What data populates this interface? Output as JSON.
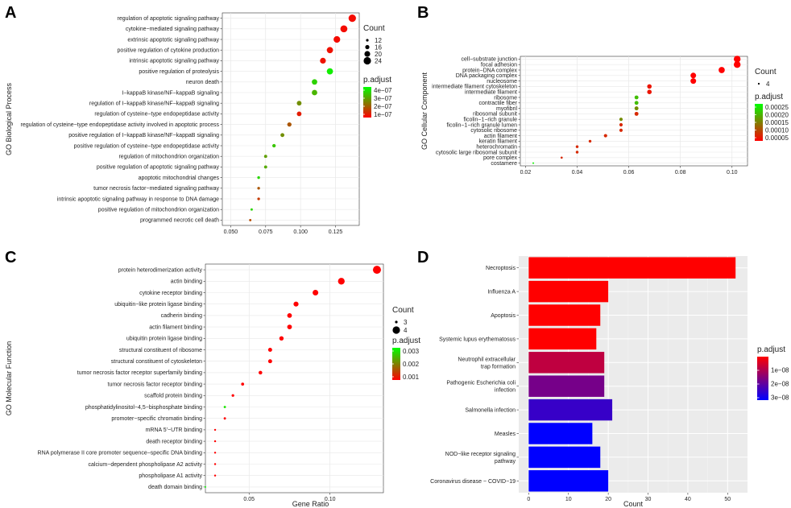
{
  "chart_data": [
    {
      "panel": "A",
      "type": "scatter",
      "ylabel": "GO Biological Process",
      "xlabel": "",
      "xlim": [
        0.044,
        0.142
      ],
      "xticks": [
        "0.050",
        "0.075",
        "0.100",
        "0.125"
      ],
      "xtick_values": [
        0.05,
        0.075,
        0.1,
        0.125
      ],
      "grid": true,
      "legend_position": "right",
      "count_title": "Count",
      "count_legend": [
        "12",
        "16",
        "20",
        "24"
      ],
      "padj_title": "p.adjust",
      "padj_ticks": [
        "4e−07",
        "3e−07",
        "2e−07",
        "1e−07"
      ],
      "padj_range": [
        0,
        4.5e-07
      ],
      "color_low": "#ff0000",
      "color_high": "#00ff00",
      "points": [
        {
          "term": "regulation of apoptotic signaling pathway",
          "ratio": 0.137,
          "count": 26,
          "padj": 2e-08
        },
        {
          "term": "cytokine−mediated signaling pathway",
          "ratio": 0.131,
          "count": 25,
          "padj": 2e-08
        },
        {
          "term": "extrinsic apoptotic signaling pathway",
          "ratio": 0.126,
          "count": 24,
          "padj": 2e-08
        },
        {
          "term": "positive regulation of cytokine production",
          "ratio": 0.121,
          "count": 23,
          "padj": 3e-08
        },
        {
          "term": "intrinsic apoptotic signaling pathway",
          "ratio": 0.116,
          "count": 22,
          "padj": 3e-08
        },
        {
          "term": "positive regulation of proteolysis",
          "ratio": 0.121,
          "count": 23,
          "padj": 4.2e-07
        },
        {
          "term": "neuron death",
          "ratio": 0.11,
          "count": 21,
          "padj": 3.7e-07
        },
        {
          "term": "I−kappaB kinase/NF−kappaB signaling",
          "ratio": 0.11,
          "count": 21,
          "padj": 3.2e-07
        },
        {
          "term": "regulation of I−kappaB kinase/NF−kappaB signaling",
          "ratio": 0.099,
          "count": 19,
          "padj": 2.5e-07
        },
        {
          "term": "regulation of cysteine−type endopeptidase activity",
          "ratio": 0.099,
          "count": 19,
          "padj": 5e-08
        },
        {
          "term": "regulation of cysteine−type endopeptidase activity involved in apoptotic process",
          "ratio": 0.092,
          "count": 18,
          "padj": 1.5e-07
        },
        {
          "term": "positive regulation of I−kappaB kinase/NF−kappaB signaling",
          "ratio": 0.087,
          "count": 17,
          "padj": 2.5e-07
        },
        {
          "term": "positive regulation of cysteine−type endopeptidase activity",
          "ratio": 0.081,
          "count": 16,
          "padj": 3.5e-07
        },
        {
          "term": "regulation of mitochondrion organization",
          "ratio": 0.075,
          "count": 15,
          "padj": 2.8e-07
        },
        {
          "term": "positive regulation of apoptotic signaling pathway",
          "ratio": 0.075,
          "count": 15,
          "padj": 3e-07
        },
        {
          "term": "apoptotic mitochondrial changes",
          "ratio": 0.07,
          "count": 14,
          "padj": 3.8e-07
        },
        {
          "term": "tumor necrosis factor−mediated signaling pathway",
          "ratio": 0.07,
          "count": 14,
          "padj": 1.5e-07
        },
        {
          "term": "intrinsic apoptotic signaling pathway in response to DNA damage",
          "ratio": 0.07,
          "count": 14,
          "padj": 1e-07
        },
        {
          "term": "positive regulation of mitochondrion organization",
          "ratio": 0.065,
          "count": 13,
          "padj": 3.8e-07
        },
        {
          "term": "programmed necrotic cell death",
          "ratio": 0.064,
          "count": 13,
          "padj": 1.3e-07
        }
      ]
    },
    {
      "panel": "B",
      "type": "scatter",
      "ylabel": "GO Cellular Component",
      "xlabel": "",
      "xlim": [
        0.018,
        0.106
      ],
      "xticks": [
        "0.02",
        "0.04",
        "0.06",
        "0.08",
        "0.10"
      ],
      "xtick_values": [
        0.02,
        0.04,
        0.06,
        0.08,
        0.1
      ],
      "grid": true,
      "legend_position": "right",
      "count_title": "Count",
      "count_legend": [
        "4"
      ],
      "padj_title": "p.adjust",
      "padj_ticks": [
        "0.00025",
        "0.00020",
        "0.00015",
        "0.00010",
        "0.00005"
      ],
      "padj_range": [
        1e-05,
        0.000265
      ],
      "color_low": "#ff0000",
      "color_high": "#00ff00",
      "points": [
        {
          "term": "cell−substrate junction",
          "ratio": 0.102,
          "count": 12,
          "padj": 1e-05
        },
        {
          "term": "focal adhesion",
          "ratio": 0.102,
          "count": 12,
          "padj": 1e-05
        },
        {
          "term": "protein−DNA complex",
          "ratio": 0.096,
          "count": 11,
          "padj": 1e-05
        },
        {
          "term": "DNA packaging complex",
          "ratio": 0.085,
          "count": 10,
          "padj": 1e-05
        },
        {
          "term": "nucleosome",
          "ratio": 0.085,
          "count": 10,
          "padj": 1e-05
        },
        {
          "term": "intermediate filament cytoskeleton",
          "ratio": 0.068,
          "count": 8,
          "padj": 3e-05
        },
        {
          "term": "intermediate filament",
          "ratio": 0.068,
          "count": 8,
          "padj": 3e-05
        },
        {
          "term": "ribosome",
          "ratio": 0.063,
          "count": 7,
          "padj": 0.0002
        },
        {
          "term": "contractile fiber",
          "ratio": 0.063,
          "count": 7,
          "padj": 0.0002
        },
        {
          "term": "myofibril",
          "ratio": 0.063,
          "count": 7,
          "padj": 0.00015
        },
        {
          "term": "ribosomal subunit",
          "ratio": 0.063,
          "count": 7,
          "padj": 5e-05
        },
        {
          "term": "ficolin−1−rich granule",
          "ratio": 0.057,
          "count": 6,
          "padj": 0.00015
        },
        {
          "term": "ficolin−1−rich granule lumen",
          "ratio": 0.057,
          "count": 6,
          "padj": 5e-05
        },
        {
          "term": "cytosolic ribosome",
          "ratio": 0.057,
          "count": 6,
          "padj": 5e-05
        },
        {
          "term": "actin filament",
          "ratio": 0.051,
          "count": 6,
          "padj": 5e-05
        },
        {
          "term": "keratin filament",
          "ratio": 0.045,
          "count": 5,
          "padj": 5e-05
        },
        {
          "term": "heterochromatin",
          "ratio": 0.04,
          "count": 5,
          "padj": 5e-05
        },
        {
          "term": "cytosolic large ribosomal subunit",
          "ratio": 0.04,
          "count": 5,
          "padj": 5e-05
        },
        {
          "term": "pore complex",
          "ratio": 0.034,
          "count": 4,
          "padj": 5e-05
        },
        {
          "term": "costamere",
          "ratio": 0.023,
          "count": 3,
          "padj": 0.00025
        }
      ]
    },
    {
      "panel": "C",
      "type": "scatter",
      "ylabel": "GO Molecular Function",
      "xlabel": "Gene Ratio",
      "xlim": [
        0.023,
        0.133
      ],
      "xticks": [
        "0.05",
        "0.10"
      ],
      "xtick_values": [
        0.05,
        0.1
      ],
      "grid": true,
      "legend_position": "right",
      "count_title": "Count",
      "count_legend": [
        "3",
        "4"
      ],
      "padj_title": "p.adjust",
      "padj_ticks": [
        "0.003",
        "0.002",
        "0.001"
      ],
      "padj_range": [
        0.0004,
        0.0032
      ],
      "color_low": "#ff0000",
      "color_high": "#00ff00",
      "points": [
        {
          "term": "protein heterodimerization activity",
          "ratio": 0.129,
          "count": 23,
          "padj": 0.0004
        },
        {
          "term": "actin binding",
          "ratio": 0.107,
          "count": 19,
          "padj": 0.0004
        },
        {
          "term": "cytokine receptor binding",
          "ratio": 0.091,
          "count": 16,
          "padj": 0.0004
        },
        {
          "term": "ubiquitin−like protein ligase binding",
          "ratio": 0.079,
          "count": 14,
          "padj": 0.0004
        },
        {
          "term": "cadherin binding",
          "ratio": 0.075,
          "count": 13,
          "padj": 0.0004
        },
        {
          "term": "actin filament binding",
          "ratio": 0.075,
          "count": 13,
          "padj": 0.0004
        },
        {
          "term": "ubiquitin protein ligase binding",
          "ratio": 0.07,
          "count": 12,
          "padj": 0.0004
        },
        {
          "term": "structural constituent of ribosome",
          "ratio": 0.063,
          "count": 11,
          "padj": 0.0004
        },
        {
          "term": "structural constituent of cytoskeleton",
          "ratio": 0.063,
          "count": 11,
          "padj": 0.0004
        },
        {
          "term": "tumor necrosis factor receptor superfamily binding",
          "ratio": 0.057,
          "count": 10,
          "padj": 0.0004
        },
        {
          "term": "tumor necrosis factor receptor binding",
          "ratio": 0.046,
          "count": 8,
          "padj": 0.0004
        },
        {
          "term": "scaffold protein binding",
          "ratio": 0.04,
          "count": 7,
          "padj": 0.0004
        },
        {
          "term": "phosphatidylinositol−4,5−bisphosphate binding",
          "ratio": 0.035,
          "count": 6,
          "padj": 0.0029
        },
        {
          "term": "promoter−specific chromatin binding",
          "ratio": 0.035,
          "count": 6,
          "padj": 0.0004
        },
        {
          "term": "mRNA 5'−UTR binding",
          "ratio": 0.029,
          "count": 5,
          "padj": 0.0004
        },
        {
          "term": "death receptor binding",
          "ratio": 0.029,
          "count": 5,
          "padj": 0.0004
        },
        {
          "term": "RNA polymerase II core promoter sequence−specific DNA binding",
          "ratio": 0.029,
          "count": 5,
          "padj": 0.0004
        },
        {
          "term": "calcium−dependent phospholipase A2 activity",
          "ratio": 0.029,
          "count": 5,
          "padj": 0.0004
        },
        {
          "term": "phospholipase A1 activity",
          "ratio": 0.029,
          "count": 5,
          "padj": 0.0004
        },
        {
          "term": "death domain binding",
          "ratio": 0.023,
          "count": 4,
          "padj": 0.0031
        }
      ]
    },
    {
      "panel": "D",
      "type": "bar",
      "orientation": "horizontal",
      "xlabel": "Count",
      "ylabel": "",
      "xlim": [
        -2.5,
        55
      ],
      "xticks": [
        "0",
        "10",
        "20",
        "30",
        "40",
        "50"
      ],
      "xtick_values": [
        0,
        10,
        20,
        30,
        40,
        50
      ],
      "grid": true,
      "legend_position": "right",
      "padj_title": "p.adjust",
      "padj_ticks": [
        "1e−08",
        "2e−08",
        "3e−08"
      ],
      "padj_range": [
        5e-09,
        3.3e-08
      ],
      "color_low": "#ff0000",
      "color_high": "#0000ff",
      "bars": [
        {
          "term": "Necroptosis",
          "label": [
            "Necroptosis"
          ],
          "value": 52,
          "padj": 5e-09
        },
        {
          "term": "Influenza A",
          "label": [
            "Influenza A"
          ],
          "value": 20,
          "padj": 5e-09
        },
        {
          "term": "Apoptosis",
          "label": [
            "Apoptosis"
          ],
          "value": 18,
          "padj": 5e-09
        },
        {
          "term": "Systemic lupus erythematosus",
          "label": [
            "Systemic lupus erythematosus"
          ],
          "value": 17,
          "padj": 5e-09
        },
        {
          "term": "Neutrophil extracellular trap formation",
          "label": [
            "Neutrophil extracellular",
            "trap formation"
          ],
          "value": 19,
          "padj": 1.2e-08
        },
        {
          "term": "Pathogenic Escherichia coli infection",
          "label": [
            "Pathogenic Escherichia coli",
            "infection"
          ],
          "value": 19,
          "padj": 2e-08
        },
        {
          "term": "Salmonella infection",
          "label": [
            "Salmonella infection"
          ],
          "value": 21,
          "padj": 2.7e-08
        },
        {
          "term": "Measles",
          "label": [
            "Measles"
          ],
          "value": 16,
          "padj": 3.3e-08
        },
        {
          "term": "NOD−like receptor signaling pathway",
          "label": [
            "NOD−like receptor signaling",
            "pathway"
          ],
          "value": 18,
          "padj": 3.3e-08
        },
        {
          "term": "Coronavirus disease − COVID−19",
          "label": [
            "Coronavirus disease − COVID−19"
          ],
          "value": 20,
          "padj": 3.3e-08
        }
      ]
    }
  ]
}
